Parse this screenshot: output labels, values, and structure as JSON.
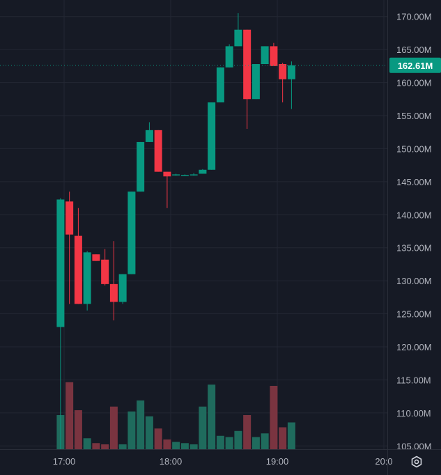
{
  "chart_data": {
    "type": "candlestick",
    "title": "",
    "xlabel": "",
    "ylabel": "",
    "ylim": [
      104.5,
      172.5
    ],
    "y_ticks": [
      "170.00M",
      "165.00M",
      "160.00M",
      "155.00M",
      "150.00M",
      "145.00M",
      "140.00M",
      "135.00M",
      "130.00M",
      "125.00M",
      "120.00M",
      "115.00M",
      "110.00M",
      "105.00M"
    ],
    "x_ticks": [
      "17:00",
      "18:00",
      "19:00",
      "20:0"
    ],
    "last_price": {
      "value": 162.61,
      "label": "162.61M",
      "color": "#089981"
    },
    "colors": {
      "up": "#089981",
      "down": "#f23645",
      "up_volume": "#1f6b5d",
      "down_volume": "#7a3440",
      "background": "#161a25",
      "grid": "#232733",
      "axis_text": "#b2b5be"
    },
    "grid": true,
    "candles": [
      {
        "time": "16:58",
        "open": 123.0,
        "high": 142.5,
        "low": 104.5,
        "close": 142.3,
        "volume": 0.28
      },
      {
        "time": "17:03",
        "open": 142.0,
        "high": 143.5,
        "low": 126.5,
        "close": 137.0,
        "volume": 0.55
      },
      {
        "time": "17:08",
        "open": 136.8,
        "high": 141.0,
        "low": 126.5,
        "close": 126.5,
        "volume": 0.32
      },
      {
        "time": "17:13",
        "open": 126.5,
        "high": 134.5,
        "low": 125.5,
        "close": 134.3,
        "volume": 0.09
      },
      {
        "time": "17:18",
        "open": 134.0,
        "high": 134.0,
        "low": 133.0,
        "close": 133.0,
        "volume": 0.05
      },
      {
        "time": "17:23",
        "open": 133.2,
        "high": 134.8,
        "low": 129.3,
        "close": 129.5,
        "volume": 0.04
      },
      {
        "time": "17:28",
        "open": 129.5,
        "high": 136.0,
        "low": 124.0,
        "close": 126.8,
        "volume": 0.35
      },
      {
        "time": "17:33",
        "open": 126.8,
        "high": 131.0,
        "low": 126.5,
        "close": 131.0,
        "volume": 0.04
      },
      {
        "time": "17:38",
        "open": 131.0,
        "high": 143.5,
        "low": 131.0,
        "close": 143.5,
        "volume": 0.31
      },
      {
        "time": "17:43",
        "open": 143.5,
        "high": 151.0,
        "low": 143.5,
        "close": 151.0,
        "volume": 0.4
      },
      {
        "time": "17:48",
        "open": 151.0,
        "high": 154.0,
        "low": 151.0,
        "close": 152.8,
        "volume": 0.27
      },
      {
        "time": "17:53",
        "open": 152.8,
        "high": 152.8,
        "low": 146.5,
        "close": 146.5,
        "volume": 0.17
      },
      {
        "time": "17:58",
        "open": 146.5,
        "high": 146.5,
        "low": 141.0,
        "close": 145.8,
        "volume": 0.08
      },
      {
        "time": "18:03",
        "open": 146.0,
        "high": 146.2,
        "low": 145.9,
        "close": 146.1,
        "volume": 0.06
      },
      {
        "time": "18:08",
        "open": 146.0,
        "high": 146.1,
        "low": 145.9,
        "close": 146.0,
        "volume": 0.05
      },
      {
        "time": "18:13",
        "open": 146.0,
        "high": 146.3,
        "low": 145.9,
        "close": 146.1,
        "volume": 0.04
      },
      {
        "time": "18:18",
        "open": 146.2,
        "high": 146.9,
        "low": 146.2,
        "close": 146.8,
        "volume": 0.35
      },
      {
        "time": "18:23",
        "open": 146.8,
        "high": 157.0,
        "low": 146.8,
        "close": 157.0,
        "volume": 0.53
      },
      {
        "time": "18:28",
        "open": 157.0,
        "high": 162.3,
        "low": 157.0,
        "close": 162.3,
        "volume": 0.11
      },
      {
        "time": "18:33",
        "open": 162.3,
        "high": 165.8,
        "low": 162.3,
        "close": 165.5,
        "volume": 0.1
      },
      {
        "time": "18:38",
        "open": 165.5,
        "high": 170.5,
        "low": 165.5,
        "close": 168.0,
        "volume": 0.15
      },
      {
        "time": "18:43",
        "open": 168.0,
        "high": 168.0,
        "low": 153.0,
        "close": 157.5,
        "volume": 0.28
      },
      {
        "time": "18:48",
        "open": 157.5,
        "high": 162.8,
        "low": 157.5,
        "close": 162.8,
        "volume": 0.1
      },
      {
        "time": "18:53",
        "open": 162.8,
        "high": 165.5,
        "low": 162.8,
        "close": 165.5,
        "volume": 0.13
      },
      {
        "time": "18:58",
        "open": 165.5,
        "high": 166.0,
        "low": 162.5,
        "close": 162.5,
        "volume": 0.52
      },
      {
        "time": "19:03",
        "open": 162.8,
        "high": 163.0,
        "low": 157.0,
        "close": 160.5,
        "volume": 0.18
      },
      {
        "time": "19:08",
        "open": 160.5,
        "high": 163.2,
        "low": 156.0,
        "close": 162.6,
        "volume": 0.22
      }
    ]
  },
  "icons": {
    "settings": "settings-icon"
  }
}
